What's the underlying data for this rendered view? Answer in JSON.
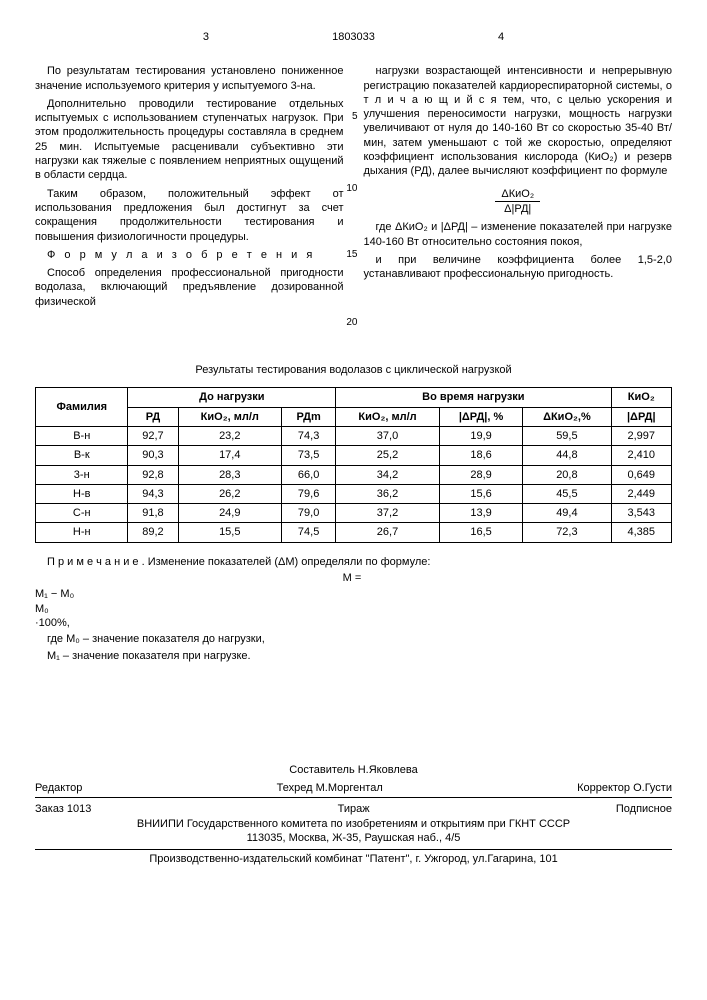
{
  "header": {
    "page_left": "3",
    "doc_number": "1803033",
    "page_right": "4"
  },
  "left_col": {
    "p1": "По результатам тестирования установлено пониженное значение используемого критерия у испытуемого 3-на.",
    "p2": "Дополнительно проводили тестирование отдельных испытуемых с использованием ступенчатых нагрузок. При этом продолжительность процедуры составляла в среднем 25 мин. Испытуемые расценивали субъективно эти нагрузки как тяжелые с появлением неприятных ощущений в области сердца.",
    "p3": "Таким образом, положительный эффект от использования предложения был достигнут за счет сокращения продолжительности тестирования и повышения физиологичности процедуры.",
    "formula_heading": "Ф о р м у л а  и з о б р е т е н и я",
    "p4": "Способ определения профессиональной пригодности водолаза, включающий предъявление дозированной физической"
  },
  "right_col": {
    "p1": "нагрузки возрастающей интенсивности и непрерывную регистрацию показателей кардиореспираторной системы, о т л и ч а ю щ и й с я  тем, что, с целью ускорения и улучшения переносимости нагрузки, мощность нагрузки увеличивают от нуля до 140-160 Вт со скоростью 35-40 Вт/мин, затем уменьшают с той же скоростью, определяют коэффициент использования кислорода (КиО₂) и резерв дыхания (РД), далее вычисляют коэффициент по формуле",
    "frac_num": "ΔКиО₂",
    "frac_den": "Δ|РД|",
    "p2": "где ΔКиО₂ и |ΔРД| – изменение показателей при нагрузке 140-160 Вт относительно состояния покоя,",
    "p3": "и при величине коэффициента более 1,5-2,0 устанавливают профессиональную пригодность."
  },
  "line_numbers": {
    "n5": "5",
    "n10": "10",
    "n15": "15",
    "n20": "20"
  },
  "table": {
    "title": "Результаты тестирования водолазов с циклической нагрузкой",
    "headers": {
      "familia": "Фамилия",
      "before": "До нагрузки",
      "during": "Во время нагрузки",
      "kio2_last": "КиО₂",
      "rd": "РД",
      "kio2_ml": "КиО₂, мл/л",
      "rdm": "РДm",
      "kio2_ml2": "КиО₂, мл/л",
      "drd_pct": "|ΔРД|, %",
      "dkio2_pct": "ΔКиО₂,%",
      "drd_last": "|ΔРД|"
    },
    "rows": [
      [
        "В-н",
        "92,7",
        "23,2",
        "74,3",
        "37,0",
        "19,9",
        "59,5",
        "2,997"
      ],
      [
        "В-к",
        "90,3",
        "17,4",
        "73,5",
        "25,2",
        "18,6",
        "44,8",
        "2,410"
      ],
      [
        "3-н",
        "92,8",
        "28,3",
        "66,0",
        "34,2",
        "28,9",
        "20,8",
        "0,649"
      ],
      [
        "Н-в",
        "94,3",
        "26,2",
        "79,6",
        "36,2",
        "15,6",
        "45,5",
        "2,449"
      ],
      [
        "С-н",
        "91,8",
        "24,9",
        "79,0",
        "37,2",
        "13,9",
        "49,4",
        "3,543"
      ],
      [
        "Н-н",
        "89,2",
        "15,5",
        "74,5",
        "26,7",
        "16,5",
        "72,3",
        "4,385"
      ]
    ]
  },
  "note": {
    "heading": "П р и м е ч а н и е . Изменение показателей (ΔM) определяли по формуле:",
    "frac_num": "M₁ − M₀",
    "frac_den": "M₀",
    "suffix": "·100%,",
    "m0": "где M₀ – значение показателя до нагрузки,",
    "m1": "M₁ – значение показателя при нагрузке."
  },
  "footer": {
    "compiler": "Составитель Н.Яковлева",
    "tehred": "Техред М.Моргентал",
    "korrektor": "Корректор О.Густи",
    "editor": "Редактор",
    "zakaz": "Заказ 1013",
    "tirazh": "Тираж",
    "podpisnoe": "Подписное",
    "vniiipi": "ВНИИПИ Государственного комитета по изобретениям и открытиям при ГКНТ СССР",
    "address": "113035, Москва, Ж-35, Раушская наб., 4/5",
    "publisher": "Производственно-издательский комбинат \"Патент\", г. Ужгород, ул.Гагарина, 101"
  }
}
